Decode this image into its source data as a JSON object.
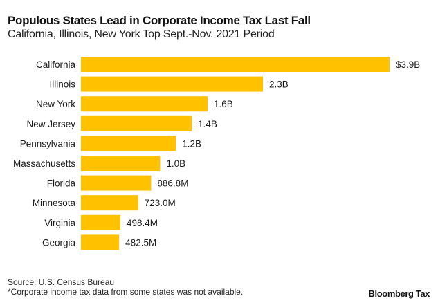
{
  "chart_data": {
    "type": "bar",
    "orientation": "horizontal",
    "title": "Populous States Lead in Corporate Income Tax Last Fall",
    "subtitle": "California, Illinois, New York Top Sept.-Nov. 2021 Period",
    "xlabel": "",
    "ylabel": "",
    "unit": "USD billions",
    "categories": [
      "California",
      "Illinois",
      "New York",
      "New Jersey",
      "Pennsylvania",
      "Massachusetts",
      "Florida",
      "Minnesota",
      "Virginia",
      "Georgia"
    ],
    "values": [
      3.9,
      2.3,
      1.6,
      1.4,
      1.2,
      1.0,
      0.8868,
      0.723,
      0.4984,
      0.4825
    ],
    "data_labels": [
      "$3.9B",
      "2.3B",
      "1.6B",
      "1.4B",
      "1.2B",
      "1.0B",
      "886.8M",
      "723.0M",
      "498.4M",
      "482.5M"
    ],
    "xlim": [
      0,
      3.9
    ],
    "grid": false,
    "legend": "none",
    "bar_color": "#ffc100"
  },
  "footer": {
    "source": "Source: U.S. Census Bureau",
    "note": "*Corporate income tax data from some states was not available.",
    "brand": "Bloomberg Tax"
  }
}
